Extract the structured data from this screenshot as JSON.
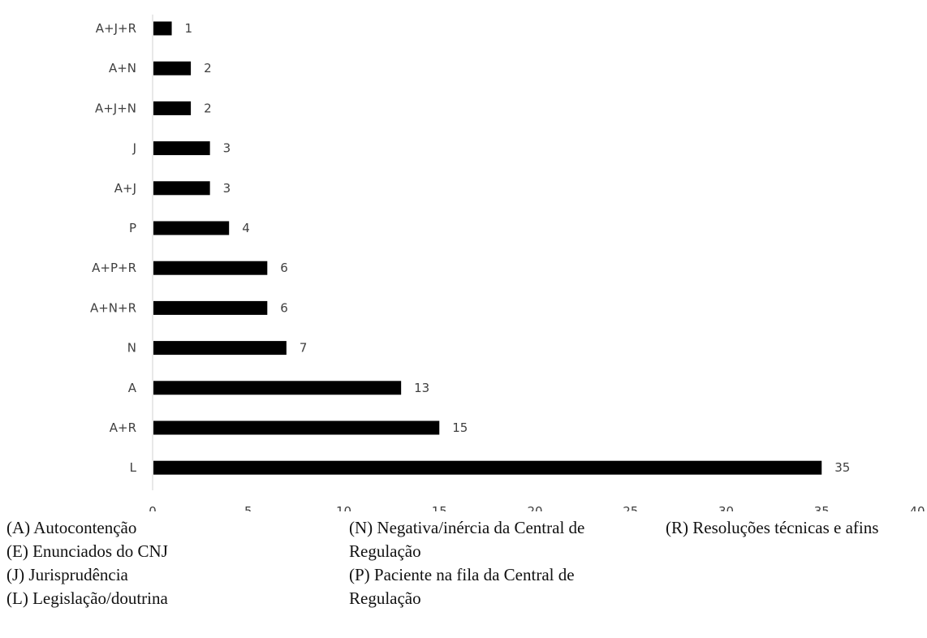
{
  "chart_data": {
    "type": "bar",
    "orientation": "horizontal",
    "title": "",
    "xlabel": "",
    "ylabel": "",
    "xlim": [
      0,
      40
    ],
    "x_ticks": [
      0,
      5,
      10,
      15,
      20,
      25,
      30,
      35,
      40
    ],
    "grid": false,
    "bar_color": "#000000",
    "categories": [
      "A+J+R",
      "A+N",
      "A+J+N",
      "J",
      "A+J",
      "P",
      "A+P+R",
      "A+N+R",
      "N",
      "A",
      "A+R",
      "L"
    ],
    "values": [
      1,
      2,
      2,
      3,
      3,
      4,
      6,
      6,
      7,
      13,
      15,
      35
    ],
    "data_labels": true
  },
  "legend": {
    "col1": [
      "(A) Autocontenção",
      "(E) Enunciados do CNJ",
      "(J) Jurisprudência",
      "(L) Legislação/doutrina"
    ],
    "col2": [
      "(N) Negativa/inércia da Central de Regulação",
      "(P) Paciente na fila da Central de Regulação"
    ],
    "col3": [
      "(R) Resoluções técnicas e afins"
    ]
  }
}
